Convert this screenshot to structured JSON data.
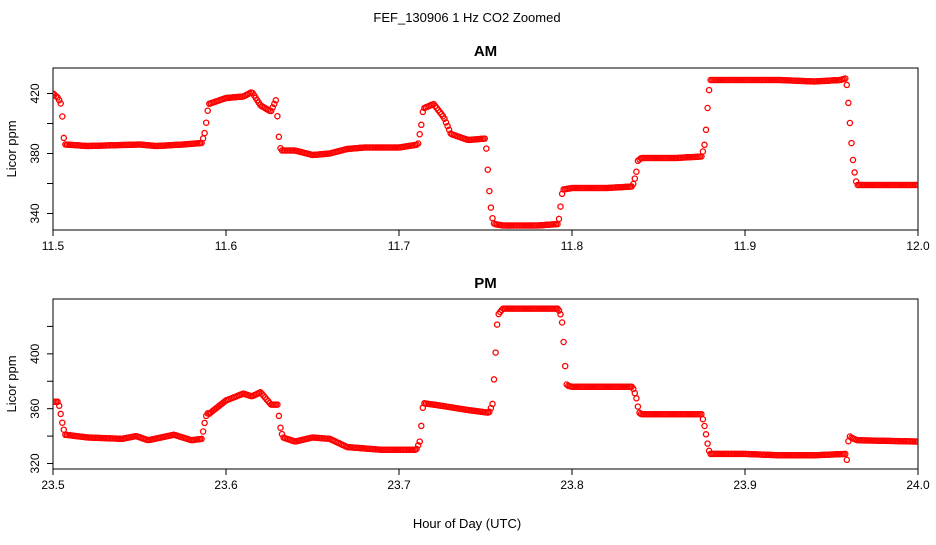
{
  "figure": {
    "title": "FEF_130906  1 Hz CO2 Zoomed",
    "xlabel": "Hour of Day (UTC)"
  },
  "colors": {
    "points": "#ff0000",
    "axes": "#000000"
  },
  "chart_data": [
    {
      "type": "scatter",
      "title": "AM",
      "ylabel": "Licor ppm",
      "xlim": [
        11.5,
        12.0
      ],
      "ylim": [
        329,
        437
      ],
      "xticks": [
        "11.5",
        "11.6",
        "11.7",
        "11.8",
        "11.9",
        "12.0"
      ],
      "xtick_values": [
        11.5,
        11.6,
        11.7,
        11.8,
        11.9,
        12.0
      ],
      "yticks": [
        "340",
        "380",
        "420"
      ],
      "ytick_values": [
        340,
        380,
        420
      ],
      "yticks_minor": [
        360,
        400
      ],
      "series": [
        {
          "x": [
            11.5,
            11.503,
            11.505,
            11.506,
            11.507,
            11.52,
            11.55,
            11.56,
            11.575,
            11.586,
            11.588,
            11.589,
            11.59,
            11.6,
            11.61,
            11.615,
            11.62,
            11.626,
            11.629,
            11.63,
            11.631,
            11.632,
            11.64,
            11.65,
            11.66,
            11.67,
            11.68,
            11.69,
            11.7,
            11.711,
            11.713,
            11.714,
            11.72,
            11.726,
            11.73,
            11.74,
            11.75,
            11.751,
            11.752,
            11.753,
            11.754,
            11.755,
            11.76,
            11.78,
            11.792,
            11.793,
            11.794,
            11.795,
            11.8,
            11.82,
            11.835,
            11.837,
            11.838,
            11.84,
            11.86,
            11.875,
            11.877,
            11.878,
            11.879,
            11.88,
            11.9,
            11.92,
            11.94,
            11.955,
            11.958,
            11.959,
            11.96,
            11.961,
            11.962,
            11.963,
            11.964,
            11.965,
            11.98,
            12.0
          ],
          "y": [
            420,
            417,
            412,
            392,
            386,
            385,
            386,
            385,
            386,
            387,
            395,
            405,
            413,
            417,
            418,
            421,
            412,
            408,
            416,
            400,
            385,
            382,
            382,
            379,
            380,
            383,
            384,
            384,
            384,
            386,
            400,
            410,
            413,
            404,
            393,
            389,
            390,
            375,
            358,
            345,
            337,
            333,
            332,
            332,
            333,
            340,
            352,
            356,
            357,
            357,
            358,
            366,
            375,
            377,
            377,
            378,
            388,
            405,
            420,
            429,
            429,
            429,
            428,
            429,
            430,
            425,
            410,
            395,
            380,
            370,
            362,
            359,
            359,
            359
          ]
        }
      ]
    },
    {
      "type": "scatter",
      "title": "PM",
      "ylabel": "Licor ppm",
      "xlim": [
        23.5,
        24.0
      ],
      "ylim": [
        316,
        440
      ],
      "xticks": [
        "23.5",
        "23.6",
        "23.7",
        "23.8",
        "23.9",
        "24.0"
      ],
      "xtick_values": [
        23.5,
        23.6,
        23.7,
        23.8,
        23.9,
        24.0
      ],
      "yticks": [
        "320",
        "360",
        "400"
      ],
      "ytick_values": [
        320,
        360,
        400
      ],
      "yticks_minor": [
        340,
        380,
        420
      ],
      "series": [
        {
          "x": [
            23.5,
            23.503,
            23.504,
            23.505,
            23.506,
            23.507,
            23.52,
            23.54,
            23.548,
            23.555,
            23.57,
            23.58,
            23.586,
            23.587,
            23.588,
            23.589,
            23.59,
            23.6,
            23.61,
            23.615,
            23.62,
            23.626,
            23.63,
            23.631,
            23.632,
            23.633,
            23.64,
            23.65,
            23.66,
            23.67,
            23.68,
            23.69,
            23.71,
            23.712,
            23.713,
            23.714,
            23.72,
            23.74,
            23.752,
            23.754,
            23.755,
            23.756,
            23.757,
            23.76,
            23.792,
            23.794,
            23.795,
            23.796,
            23.797,
            23.8,
            23.835,
            23.837,
            23.838,
            23.839,
            23.84,
            23.875,
            23.877,
            23.878,
            23.879,
            23.88,
            23.9,
            23.92,
            23.94,
            23.958,
            23.959,
            23.96,
            23.961,
            23.965,
            24.0
          ],
          "y": [
            365,
            365,
            360,
            352,
            346,
            341,
            339,
            338,
            340,
            337,
            341,
            337,
            338,
            345,
            352,
            357,
            356,
            366,
            371,
            369,
            372,
            363,
            363,
            349,
            343,
            339,
            336,
            339,
            338,
            332,
            331,
            330,
            330,
            336,
            349,
            364,
            363,
            359,
            357,
            363,
            383,
            405,
            428,
            433,
            433,
            427,
            412,
            392,
            377,
            376,
            376,
            369,
            362,
            357,
            356,
            356,
            345,
            337,
            330,
            327,
            327,
            326,
            326,
            327,
            322,
            341,
            339,
            337,
            336
          ]
        }
      ]
    }
  ]
}
